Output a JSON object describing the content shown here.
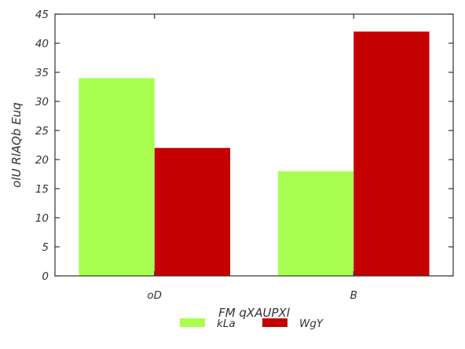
{
  "chart_data": {
    "type": "bar",
    "categories": [
      "oD",
      "B"
    ],
    "series": [
      {
        "name": "kLa",
        "values": [
          34,
          18
        ],
        "color": "#a8ff4f"
      },
      {
        "name": "WgY",
        "values": [
          22,
          42
        ],
        "color": "#c40000"
      }
    ],
    "title": "",
    "xlabel": "FM qXAUPXl",
    "ylabel": "olU RlAQb Euq",
    "ylim": [
      0,
      45
    ],
    "yticks": [
      0,
      5,
      10,
      15,
      20,
      25,
      30,
      35,
      40,
      45
    ],
    "grid": false,
    "legend_position": "bottom-center"
  }
}
